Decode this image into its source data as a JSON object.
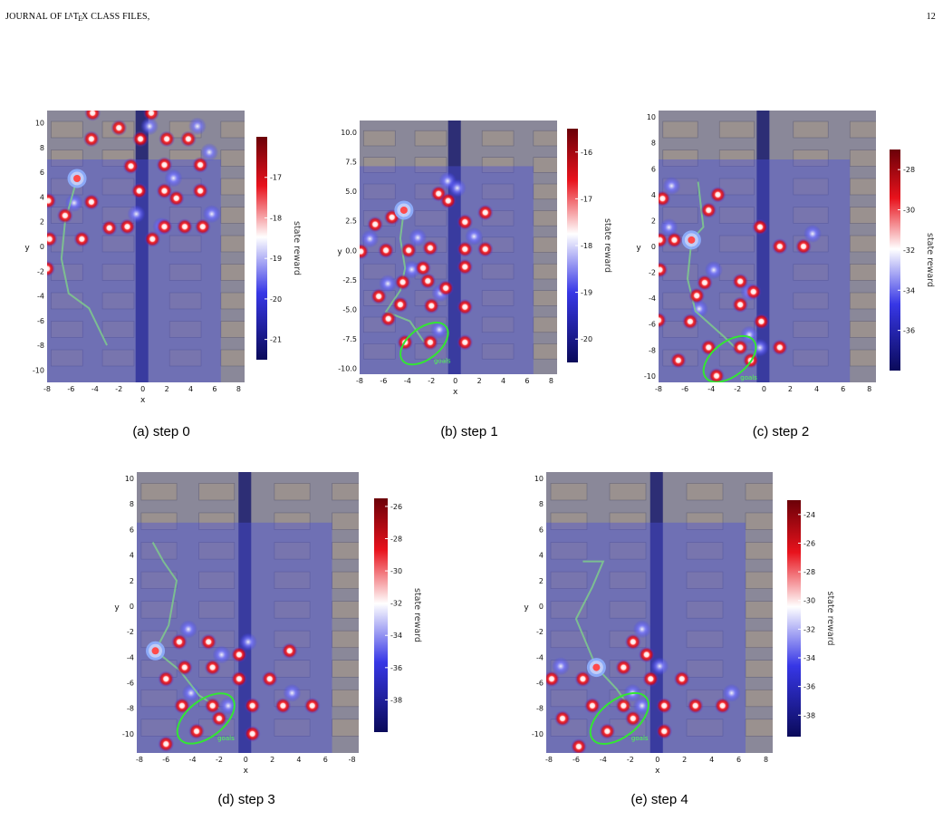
{
  "header": {
    "left": "JOURNAL OF L",
    "left_tex": "A",
    "left_rest": "T",
    "left_e": "E",
    "left_x": "X CLASS FILES,",
    "page": "12"
  },
  "figure": {
    "panels": [
      {
        "caption": "(a) step 0",
        "xlabel": "x",
        "ylabel": "y",
        "colorbar_label": "state reward",
        "xticks": [
          "-8",
          "-6",
          "-4",
          "-2",
          "0",
          "2",
          "4",
          "6",
          "8"
        ],
        "yticks": [
          "10",
          "8",
          "6",
          "4",
          "2",
          "0",
          "-2",
          "-4",
          "-6",
          "-8",
          "-10"
        ],
        "cbar_ticks": [
          "-17",
          "-18",
          "-19",
          "-20",
          "-21"
        ],
        "goal_label": "",
        "chart_data": {
          "type": "heatmap",
          "xlim": [
            -8,
            8.5
          ],
          "ylim": [
            -11,
            11
          ],
          "cbar_range": [
            -21.5,
            -16
          ],
          "agent": [
            -5.5,
            5.5
          ],
          "path": [
            [
              -5.5,
              5.5
            ],
            [
              -6.5,
              2
            ],
            [
              -6.8,
              -1
            ],
            [
              -6.2,
              -3.8
            ],
            [
              -4.5,
              -5
            ],
            [
              -3,
              -8
            ]
          ],
          "points": [
            [
              -4.2,
              10.8
            ],
            [
              -4.3,
              8.7
            ],
            [
              -2,
              9.6
            ],
            [
              -0.2,
              8.7
            ],
            [
              0.7,
              10.8
            ],
            [
              2,
              8.7
            ],
            [
              3.8,
              8.7
            ],
            [
              -1,
              6.5
            ],
            [
              1.8,
              6.6
            ],
            [
              4.8,
              6.6
            ],
            [
              -4.3,
              3.6
            ],
            [
              -0.3,
              4.5
            ],
            [
              1.8,
              4.5
            ],
            [
              2.8,
              3.9
            ],
            [
              4.8,
              4.5
            ],
            [
              -6.5,
              2.5
            ],
            [
              -7.9,
              3.7
            ],
            [
              -2.8,
              1.5
            ],
            [
              -1.3,
              1.6
            ],
            [
              1.8,
              1.6
            ],
            [
              3.5,
              1.6
            ],
            [
              5,
              1.6
            ],
            [
              -7.8,
              0.6
            ],
            [
              -5.1,
              0.6
            ],
            [
              0.8,
              0.6
            ],
            [
              -8,
              -1.8
            ]
          ]
        }
      },
      {
        "caption": "(b) step 1",
        "xlabel": "x",
        "ylabel": "y",
        "colorbar_label": "state reward",
        "xticks": [
          "-8",
          "-6",
          "-4",
          "-2",
          "0",
          "2",
          "4",
          "6",
          "8"
        ],
        "yticks": [
          "10.0",
          "7.5",
          "5.0",
          "2.5",
          "0.0",
          "-2.5",
          "-5.0",
          "-7.5",
          "-10.0"
        ],
        "cbar_ticks": [
          "-16",
          "-17",
          "-18",
          "-19",
          "-20"
        ],
        "goal_label": "goals",
        "chart_data": {
          "type": "heatmap",
          "xlim": [
            -8,
            8.5
          ],
          "ylim": [
            -10.5,
            11
          ],
          "cbar_range": [
            -20.5,
            -15.5
          ],
          "agent": [
            -4.3,
            3.4
          ],
          "goal": {
            "cx": -2.6,
            "cy": -7.9,
            "rx": 2.3,
            "ry": 1.1,
            "rot": -38
          },
          "path": [
            [
              -4.3,
              3.4
            ],
            [
              -4.6,
              1
            ],
            [
              -4.2,
              -1.5
            ],
            [
              -4.6,
              -3.4
            ],
            [
              -5.8,
              -5.2
            ],
            [
              -3.8,
              -6
            ],
            [
              -2.6,
              -7.8
            ]
          ],
          "points": [
            [
              -1.4,
              4.8
            ],
            [
              -5.3,
              2.8
            ],
            [
              -6.7,
              2.2
            ],
            [
              -3.9,
              0
            ],
            [
              -2.1,
              0.2
            ],
            [
              -5.8,
              0
            ],
            [
              -7.9,
              -0.1
            ],
            [
              -2.7,
              -1.5
            ],
            [
              0.8,
              -1.4
            ],
            [
              -4.4,
              -2.7
            ],
            [
              -2.3,
              -2.6
            ],
            [
              -0.8,
              -3.2
            ],
            [
              -6.4,
              -3.9
            ],
            [
              -4.6,
              -4.6
            ],
            [
              -5.6,
              -5.8
            ],
            [
              -2,
              -4.7
            ],
            [
              0.8,
              -4.8
            ],
            [
              -4.2,
              -7.8
            ],
            [
              -2.1,
              -7.8
            ],
            [
              0.8,
              -7.8
            ],
            [
              0.8,
              2.4
            ],
            [
              0.8,
              0.1
            ],
            [
              2.5,
              0.1
            ],
            [
              2.5,
              3.2
            ],
            [
              -0.6,
              4.2
            ]
          ]
        }
      },
      {
        "caption": "(c) step 2",
        "xlabel": "",
        "ylabel": "y",
        "colorbar_label": "state reward",
        "xticks": [
          "-8",
          "-6",
          "-4",
          "-2",
          "0",
          "2",
          "4",
          "6",
          "8"
        ],
        "yticks": [
          "10",
          "8",
          "6",
          "4",
          "2",
          "0",
          "-2",
          "-4",
          "-6",
          "-8",
          "-10"
        ],
        "cbar_ticks": [
          "-28",
          "-30",
          "-32",
          "-34",
          "-36"
        ],
        "goal_label": "goals",
        "chart_data": {
          "type": "heatmap",
          "xlim": [
            -8,
            8.5
          ],
          "ylim": [
            -10.5,
            10.5
          ],
          "cbar_range": [
            -38,
            -27
          ],
          "agent": [
            -5.5,
            0.5
          ],
          "goal": {
            "cx": -2.6,
            "cy": -8.7,
            "rx": 2.3,
            "ry": 1.1,
            "rot": -38
          },
          "path": [
            [
              -5,
              5
            ],
            [
              -4.6,
              1.5
            ],
            [
              -5.5,
              0.5
            ],
            [
              -5.8,
              -2.5
            ],
            [
              -5.2,
              -5
            ],
            [
              -3,
              -7
            ],
            [
              -2,
              -8
            ]
          ],
          "points": [
            [
              -7.7,
              3.7
            ],
            [
              -3.5,
              4
            ],
            [
              -4.2,
              2.8
            ],
            [
              -7.9,
              0.5
            ],
            [
              -6.8,
              0.5
            ],
            [
              -7.9,
              -1.8
            ],
            [
              -4.5,
              -2.8
            ],
            [
              -1.8,
              -2.7
            ],
            [
              -5.1,
              -3.8
            ],
            [
              -1.8,
              -4.5
            ],
            [
              -0.8,
              -3.5
            ],
            [
              -8,
              -5.7
            ],
            [
              -5.6,
              -5.8
            ],
            [
              -0.2,
              -5.8
            ],
            [
              -4.2,
              -7.8
            ],
            [
              -1.8,
              -7.8
            ],
            [
              1.2,
              -7.8
            ],
            [
              -6.5,
              -8.8
            ],
            [
              -1,
              -8.8
            ],
            [
              -3.6,
              -10
            ],
            [
              1.2,
              0
            ],
            [
              3,
              0
            ],
            [
              -0.3,
              1.5
            ]
          ]
        }
      },
      {
        "caption": "(d) step 3",
        "xlabel": "x",
        "ylabel": "y",
        "colorbar_label": "state reward",
        "xticks": [
          "-8",
          "-6",
          "-4",
          "-2",
          "0",
          "2",
          "4",
          "6",
          "-8"
        ],
        "yticks": [
          "10",
          "8",
          "6",
          "4",
          "2",
          "0",
          "-2",
          "-4",
          "-6",
          "-8",
          "-10"
        ],
        "cbar_ticks": [
          "-26",
          "-28",
          "-30",
          "-32",
          "-34",
          "-36",
          "-38"
        ],
        "goal_label": "goals",
        "chart_data": {
          "type": "heatmap",
          "xlim": [
            -8.2,
            8.5
          ],
          "ylim": [
            -11.5,
            10.5
          ],
          "cbar_range": [
            -40,
            -25.5
          ],
          "agent": [
            -6.8,
            -3.5
          ],
          "goal": {
            "cx": -3,
            "cy": -8.8,
            "rx": 2.5,
            "ry": 1.2,
            "rot": -38
          },
          "path": [
            [
              -7,
              5
            ],
            [
              -6.2,
              3.5
            ],
            [
              -5.2,
              2
            ],
            [
              -5.8,
              -1.5
            ],
            [
              -6.8,
              -3.5
            ],
            [
              -5,
              -5
            ],
            [
              -3.5,
              -7
            ],
            [
              -2,
              -8
            ]
          ],
          "points": [
            [
              -5,
              -2.8
            ],
            [
              -6,
              -5.7
            ],
            [
              -4.6,
              -4.8
            ],
            [
              -2.5,
              -4.8
            ],
            [
              -0.5,
              -5.7
            ],
            [
              1.8,
              -5.7
            ],
            [
              -4.8,
              -7.8
            ],
            [
              -2.5,
              -7.8
            ],
            [
              0.5,
              -7.8
            ],
            [
              2.8,
              -7.8
            ],
            [
              5,
              -7.8
            ],
            [
              -3.7,
              -9.8
            ],
            [
              -2,
              -8.8
            ],
            [
              0.5,
              -10
            ],
            [
              -6,
              -10.8
            ],
            [
              -0.5,
              -3.8
            ],
            [
              -2.8,
              -2.8
            ],
            [
              3.3,
              -3.5
            ]
          ]
        }
      },
      {
        "caption": "(e) step 4",
        "xlabel": "x",
        "ylabel": "y",
        "colorbar_label": "state reward",
        "xticks": [
          "-8",
          "-6",
          "-4",
          "-2",
          "0",
          "2",
          "4",
          "6",
          "8"
        ],
        "yticks": [
          "10",
          "8",
          "6",
          "4",
          "2",
          "0",
          "-2",
          "-4",
          "-6",
          "-8",
          "-10"
        ],
        "cbar_ticks": [
          "-24",
          "-26",
          "-28",
          "-30",
          "-32",
          "-34",
          "-36",
          "-38"
        ],
        "goal_label": "goals",
        "chart_data": {
          "type": "heatmap",
          "xlim": [
            -8.2,
            8.5
          ],
          "ylim": [
            -11.5,
            10.5
          ],
          "cbar_range": [
            -39.5,
            -23
          ],
          "agent": [
            -4.5,
            -4.8
          ],
          "goal": {
            "cx": -2.8,
            "cy": -8.8,
            "rx": 2.5,
            "ry": 1.2,
            "rot": -38
          },
          "path": [
            [
              -5.5,
              3.5
            ],
            [
              -4,
              3.5
            ],
            [
              -4.8,
              1.5
            ],
            [
              -6,
              -1
            ],
            [
              -4.5,
              -4.8
            ],
            [
              -3,
              -6.5
            ],
            [
              -2,
              -8
            ]
          ],
          "points": [
            [
              -7.8,
              -5.7
            ],
            [
              -5.5,
              -5.7
            ],
            [
              -2.5,
              -4.8
            ],
            [
              -0.5,
              -5.7
            ],
            [
              1.8,
              -5.7
            ],
            [
              -4.8,
              -7.8
            ],
            [
              -2.5,
              -7.8
            ],
            [
              0.5,
              -7.8
            ],
            [
              2.8,
              -7.8
            ],
            [
              4.8,
              -7.8
            ],
            [
              -7,
              -8.8
            ],
            [
              -3.7,
              -9.8
            ],
            [
              -1.8,
              -8.8
            ],
            [
              0.5,
              -9.8
            ],
            [
              -5.8,
              -11
            ],
            [
              -1.8,
              -2.8
            ],
            [
              -0.8,
              -3.8
            ]
          ]
        }
      }
    ]
  },
  "colors": {
    "map_base": "#8a8899",
    "map_tint": "#4b4fd8",
    "road": "#1c1e6e",
    "hot": "#c4000a",
    "path": "#7fd18a",
    "goal": "#33e633"
  }
}
